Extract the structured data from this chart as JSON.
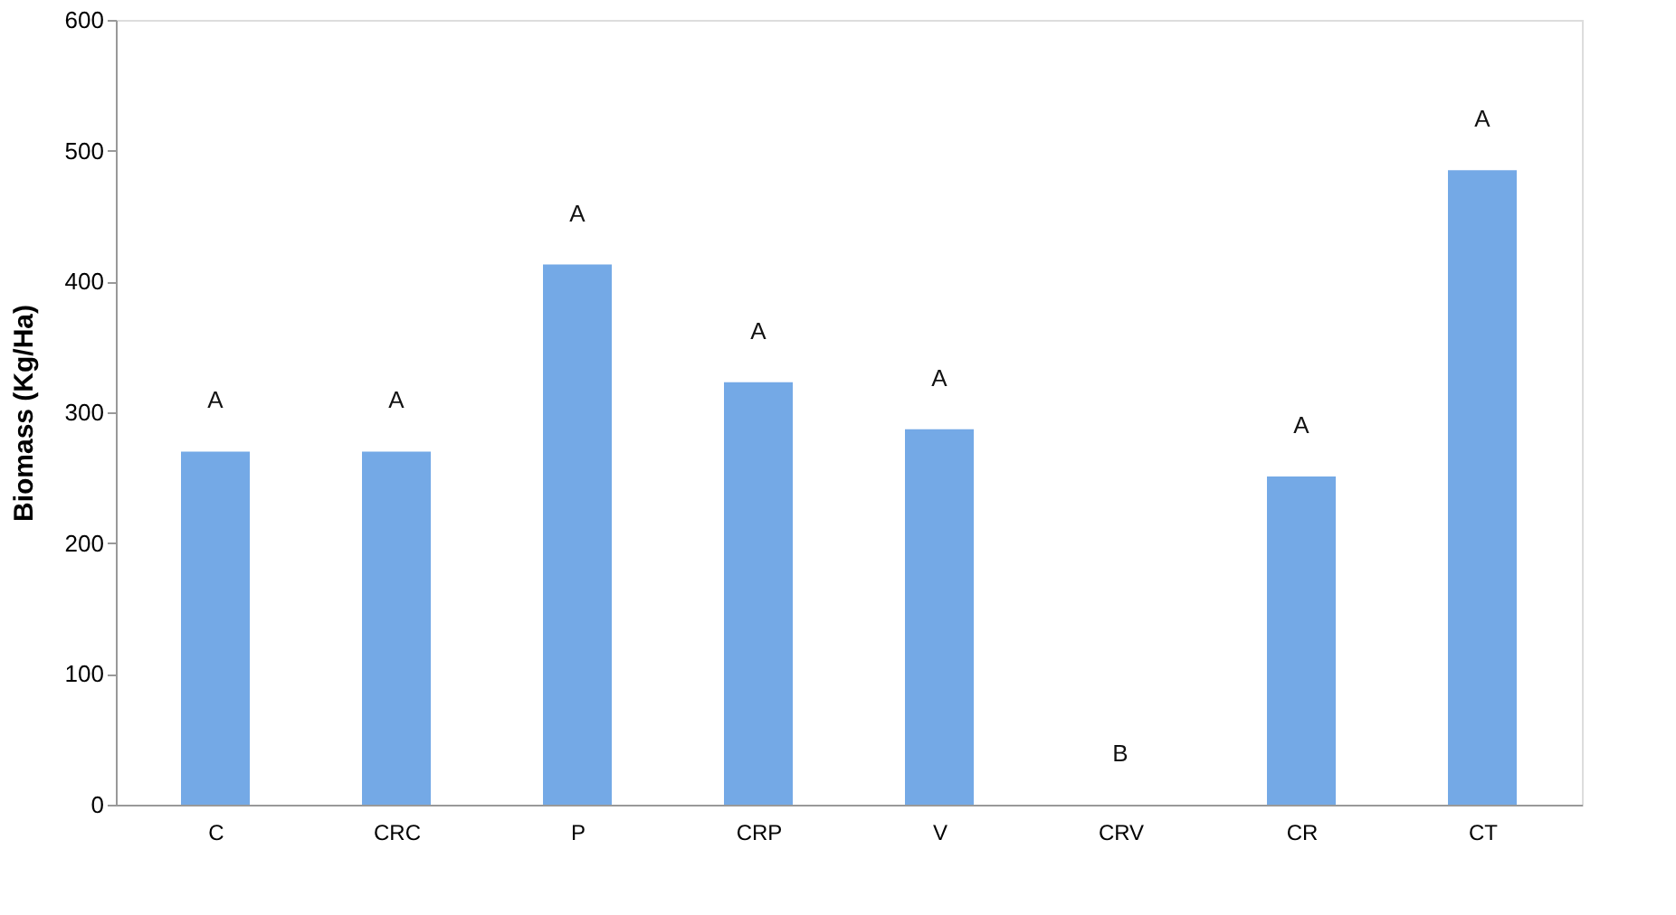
{
  "chart_data": {
    "type": "bar",
    "ylabel": "Biomass (Kg/Ha)",
    "categories": [
      "C",
      "CRC",
      "P",
      "CRP",
      "V",
      "CRV",
      "CR",
      "CT"
    ],
    "values": [
      270,
      270,
      413,
      323,
      287,
      0,
      251,
      485
    ],
    "value_labels": [
      "A",
      "A",
      "A",
      "A",
      "A",
      "B",
      "A",
      "A"
    ],
    "color": "#74a9e6",
    "ylim": [
      0,
      600
    ],
    "yticks": [
      0,
      100,
      200,
      300,
      400,
      500,
      600
    ],
    "grid": false
  }
}
